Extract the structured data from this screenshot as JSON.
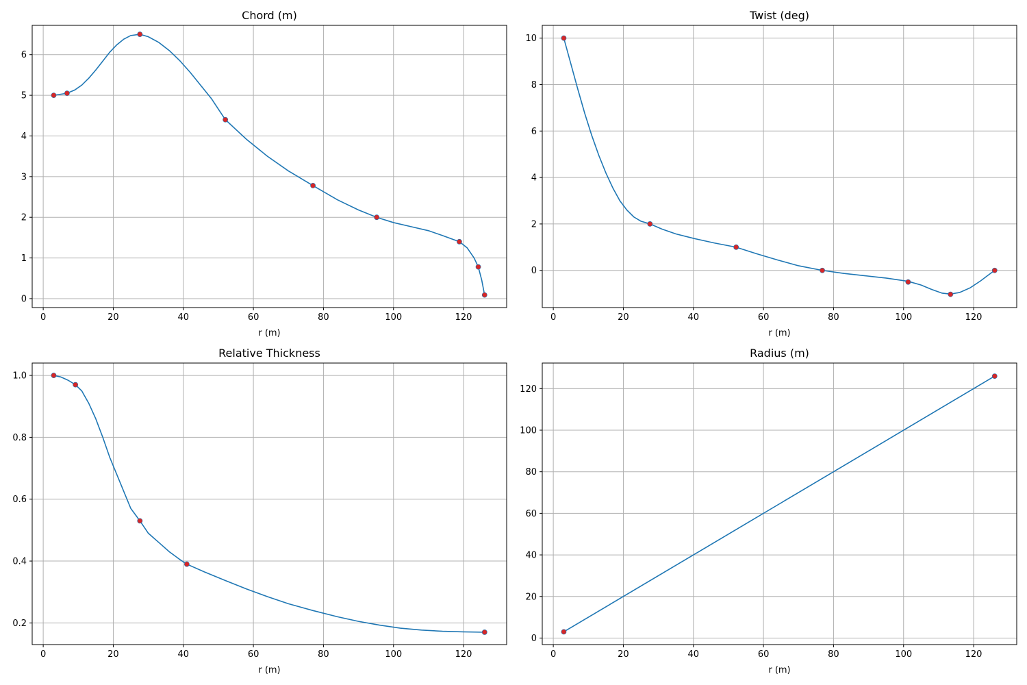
{
  "colors": {
    "line": "#1f77b4",
    "marker": "#d62728",
    "grid": "#b0b0b0"
  },
  "chart_data": [
    {
      "type": "line",
      "title": "Chord (m)",
      "xlabel": "r (m)",
      "ylabel": "",
      "xlim": [
        -3.15,
        132.3
      ],
      "ylim": [
        -0.22,
        6.72
      ],
      "xticks": [
        0,
        20,
        40,
        60,
        80,
        100,
        120
      ],
      "yticks": [
        0,
        1,
        2,
        3,
        4,
        5,
        6
      ],
      "grid": true,
      "curve": {
        "x": [
          3.0,
          6.8,
          9.0,
          11.0,
          13.0,
          15.0,
          17.0,
          19.0,
          21.0,
          23.0,
          25.0,
          27.6,
          30.0,
          33.0,
          36.0,
          39.0,
          42.0,
          45.0,
          48.0,
          52.0,
          58.0,
          64.0,
          70.0,
          77.0,
          84.0,
          90.0,
          95.2,
          100.0,
          105.0,
          110.0,
          114.0,
          118.8,
          121.0,
          123.0,
          124.2,
          125.2,
          126.0
        ],
        "y": [
          5.0,
          5.05,
          5.13,
          5.25,
          5.42,
          5.62,
          5.84,
          6.06,
          6.24,
          6.38,
          6.47,
          6.5,
          6.44,
          6.3,
          6.1,
          5.85,
          5.56,
          5.24,
          4.92,
          4.4,
          3.92,
          3.5,
          3.14,
          2.78,
          2.43,
          2.18,
          2.0,
          1.87,
          1.77,
          1.67,
          1.55,
          1.4,
          1.25,
          1.0,
          0.78,
          0.45,
          0.09
        ]
      },
      "points": {
        "x": [
          3.0,
          6.8,
          27.6,
          52.0,
          77.0,
          95.2,
          118.8,
          124.2,
          126.0
        ],
        "y": [
          5.0,
          5.05,
          6.5,
          4.4,
          2.78,
          2.0,
          1.4,
          0.78,
          0.09
        ]
      }
    },
    {
      "type": "line",
      "title": "Twist (deg)",
      "xlabel": "r (m)",
      "ylabel": "",
      "xlim": [
        -3.15,
        132.3
      ],
      "ylim": [
        -1.6,
        10.55
      ],
      "xticks": [
        0,
        20,
        40,
        60,
        80,
        100,
        120
      ],
      "yticks": [
        0,
        2,
        4,
        6,
        8,
        10
      ],
      "grid": true,
      "curve": {
        "x": [
          3.0,
          5.0,
          7.0,
          9.0,
          11.0,
          13.0,
          15.0,
          17.0,
          19.0,
          21.0,
          23.0,
          25.0,
          27.6,
          31.0,
          35.0,
          40.0,
          46.0,
          52.2,
          58.0,
          64.0,
          70.0,
          76.8,
          83.0,
          89.0,
          95.0,
          101.3,
          105.0,
          108.0,
          111.0,
          113.4,
          116.0,
          119.0,
          122.0,
          124.0,
          126.0
        ],
        "y": [
          10.0,
          8.9,
          7.8,
          6.75,
          5.8,
          4.95,
          4.2,
          3.55,
          3.0,
          2.6,
          2.3,
          2.12,
          2.0,
          1.78,
          1.57,
          1.38,
          1.18,
          1.0,
          0.72,
          0.45,
          0.2,
          0.0,
          -0.13,
          -0.23,
          -0.33,
          -0.47,
          -0.63,
          -0.82,
          -0.98,
          -1.02,
          -0.95,
          -0.75,
          -0.45,
          -0.22,
          0.0
        ]
      },
      "points": {
        "x": [
          3.0,
          27.6,
          52.2,
          76.8,
          101.3,
          113.4,
          126.0
        ],
        "y": [
          10.0,
          2.0,
          1.0,
          0.0,
          -0.5,
          -1.03,
          0.0
        ]
      }
    },
    {
      "type": "line",
      "title": "Relative Thickness",
      "xlabel": "r (m)",
      "ylabel": "",
      "xlim": [
        -3.15,
        132.3
      ],
      "ylim": [
        0.13,
        1.04
      ],
      "xticks": [
        0,
        20,
        40,
        60,
        80,
        100,
        120
      ],
      "yticks": [
        0.2,
        0.4,
        0.6,
        0.8,
        1.0
      ],
      "grid": true,
      "curve": {
        "x": [
          3.0,
          5.0,
          7.0,
          9.2,
          11.0,
          13.0,
          15.0,
          17.0,
          19.0,
          21.0,
          23.0,
          25.0,
          27.6,
          30.0,
          33.0,
          36.0,
          39.0,
          41.0,
          46.0,
          52.0,
          58.0,
          64.0,
          70.0,
          77.0,
          84.0,
          90.0,
          96.0,
          102.0,
          108.0,
          114.0,
          120.0,
          126.0
        ],
        "y": [
          1.0,
          0.995,
          0.985,
          0.97,
          0.95,
          0.91,
          0.86,
          0.8,
          0.735,
          0.68,
          0.625,
          0.57,
          0.53,
          0.49,
          0.46,
          0.43,
          0.405,
          0.39,
          0.365,
          0.337,
          0.31,
          0.285,
          0.262,
          0.24,
          0.22,
          0.205,
          0.193,
          0.183,
          0.177,
          0.173,
          0.171,
          0.17
        ]
      },
      "points": {
        "x": [
          3.0,
          9.2,
          27.6,
          41.0,
          126.0
        ],
        "y": [
          1.0,
          0.97,
          0.53,
          0.39,
          0.17
        ]
      }
    },
    {
      "type": "line",
      "title": "Radius (m)",
      "xlabel": "r (m)",
      "ylabel": "",
      "xlim": [
        -3.15,
        132.3
      ],
      "ylim": [
        -3.15,
        132.3
      ],
      "xticks": [
        0,
        20,
        40,
        60,
        80,
        100,
        120
      ],
      "yticks": [
        0,
        20,
        40,
        60,
        80,
        100,
        120
      ],
      "grid": true,
      "curve": {
        "x": [
          3.0,
          126.0
        ],
        "y": [
          3.0,
          126.0
        ]
      },
      "points": {
        "x": [
          3.0,
          126.0
        ],
        "y": [
          3.0,
          126.0
        ]
      }
    }
  ]
}
